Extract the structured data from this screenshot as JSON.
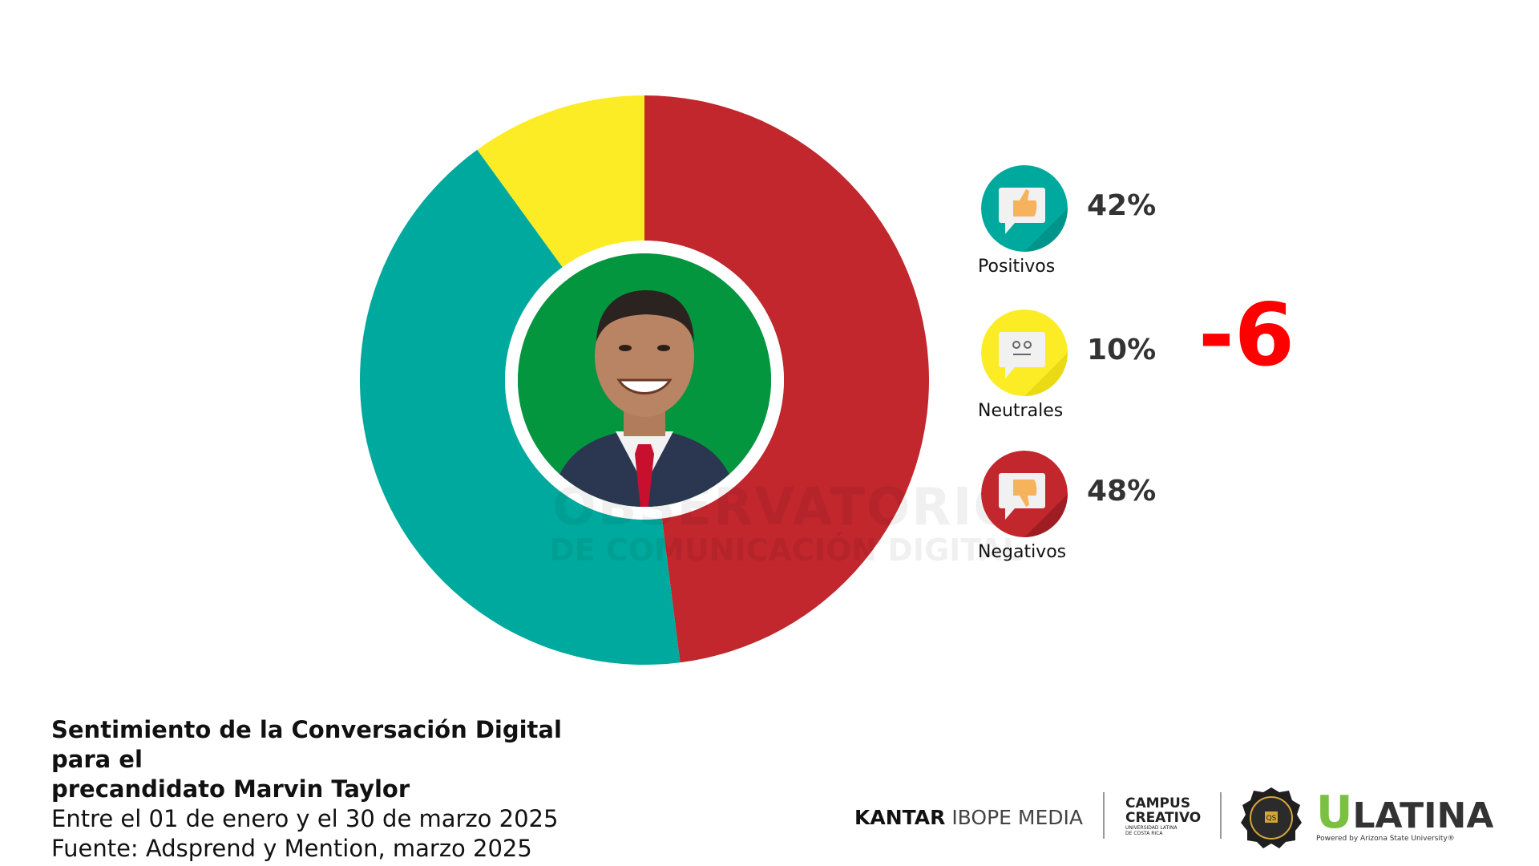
{
  "chart_data": {
    "type": "pie",
    "slices": [
      {
        "name": "Positivos",
        "value": 42,
        "color": "#00a99d"
      },
      {
        "name": "Neutrales",
        "value": 10,
        "color": "#fbec26"
      },
      {
        "name": "Negativos",
        "value": 48,
        "color": "#c1272d"
      }
    ],
    "center_image": "candidate-photo"
  },
  "legend": [
    {
      "label": "Positivos",
      "pct": "42%",
      "icon": "thumbs-up-icon",
      "color": "#00a99d"
    },
    {
      "label": "Neutrales",
      "pct": "10%",
      "icon": "neutral-face-icon",
      "color": "#fbec26"
    },
    {
      "label": "Negativos",
      "pct": "48%",
      "icon": "thumbs-down-icon",
      "color": "#c1272d"
    }
  ],
  "net_sentiment": "-6",
  "net_color": "#ff0000",
  "watermark": {
    "line1": "OBSERVATORIO",
    "line2": "DE COMUNICACIÓN DIGITAL"
  },
  "caption": {
    "title_line1": "Sentimiento de la Conversación Digital para el",
    "title_line2": "precandidato Marvin Taylor",
    "period": "Entre el 01 de enero y el 30 de marzo 2025",
    "source": "Fuente: Adsprend y Mention, marzo 2025"
  },
  "footer": {
    "kantar_bold": "KANTAR",
    "kantar_light": "IBOPE MEDIA",
    "campus_line1": "CAMPUS",
    "campus_line2": "CREATIVO",
    "campus_sub1": "UNIVERSIDAD LATINA",
    "campus_sub2": "DE COSTA RICA",
    "badge_text": "QS",
    "ulatina_u": "U",
    "ulatina_rest": "LATINA",
    "ulatina_powered": "Powered by Arizona State University®"
  }
}
